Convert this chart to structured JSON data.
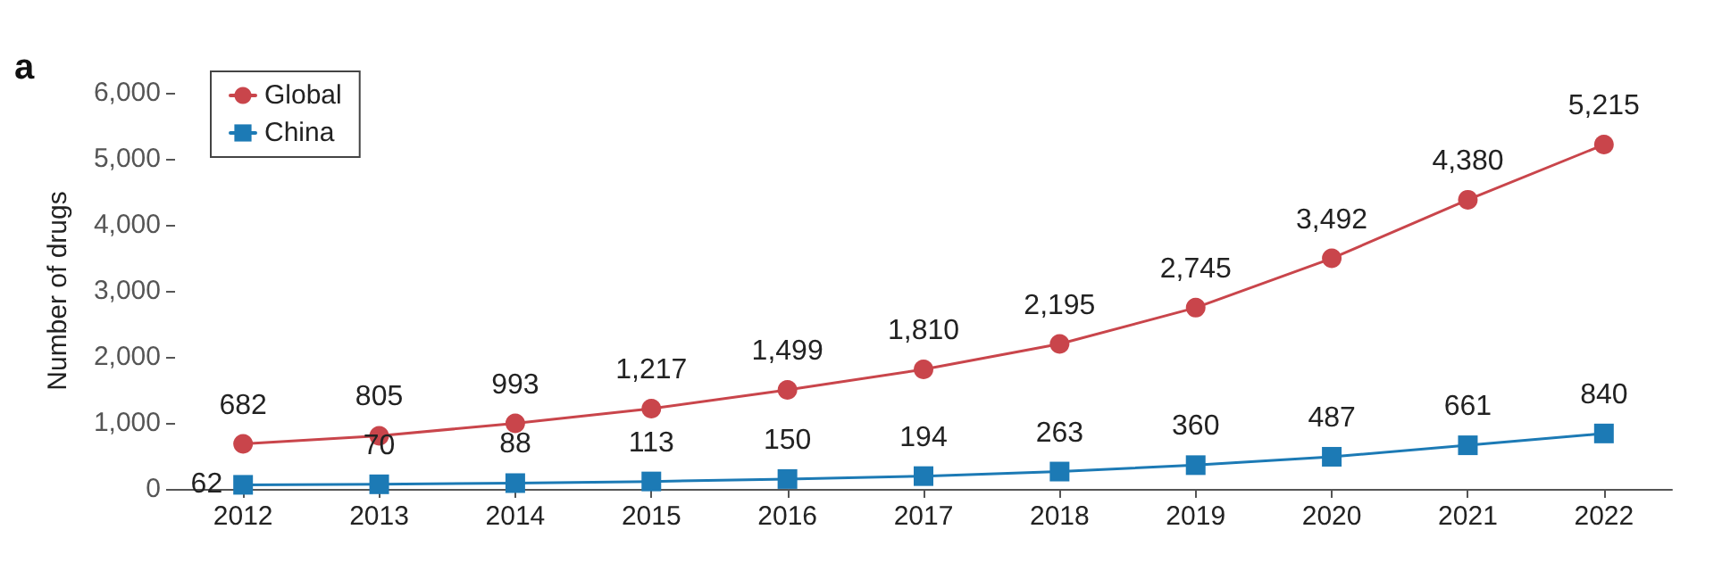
{
  "chart_data": {
    "type": "line",
    "ylabel": "Number of drugs",
    "annotations": [
      "a"
    ],
    "categories": [
      "2012",
      "2013",
      "2014",
      "2015",
      "2016",
      "2017",
      "2018",
      "2019",
      "2020",
      "2021",
      "2022"
    ],
    "series": [
      {
        "name": "Global",
        "color": "#c9454b",
        "marker": "circle",
        "values": [
          682,
          805,
          993,
          1217,
          1499,
          1810,
          2195,
          2745,
          3492,
          4380,
          5215
        ],
        "value_labels": [
          "682",
          "805",
          "993",
          "1,217",
          "1,499",
          "1,810",
          "2,195",
          "2,745",
          "3,492",
          "4,380",
          "5,215"
        ]
      },
      {
        "name": "China",
        "color": "#1c7ab5",
        "marker": "square",
        "values": [
          62,
          70,
          88,
          113,
          150,
          194,
          263,
          360,
          487,
          661,
          840
        ],
        "value_labels": [
          "62",
          "70",
          "88",
          "113",
          "150",
          "194",
          "263",
          "360",
          "487",
          "661",
          "840"
        ]
      }
    ],
    "ylim": [
      0,
      6000
    ],
    "yticks": [
      {
        "value": 0,
        "label": "0"
      },
      {
        "value": 1000,
        "label": "1,000"
      },
      {
        "value": 2000,
        "label": "2,000"
      },
      {
        "value": 3000,
        "label": "3,000"
      },
      {
        "value": 4000,
        "label": "4,000"
      },
      {
        "value": 5000,
        "label": "5,000"
      },
      {
        "value": 6000,
        "label": "6,000"
      }
    ],
    "grid": false,
    "legend": "top left"
  }
}
